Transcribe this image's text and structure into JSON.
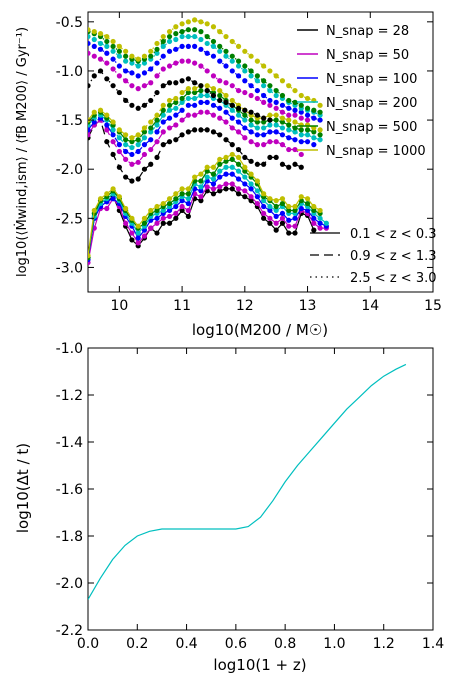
{
  "chart_data": [
    {
      "type": "line",
      "xlabel": "log10(M200 / M☉)",
      "ylabel": "log10(⟨Ṁwind,ism⟩ / ⟨fB M200⟩ / Gyr⁻¹)",
      "xlim": [
        9.5,
        15
      ],
      "ylim": [
        -3.25,
        -0.4
      ],
      "xticks": [
        "10",
        "11",
        "12",
        "13",
        "14",
        "15"
      ],
      "yticks": [
        "-3.0",
        "-2.5",
        "-2.0",
        "-1.5",
        "-1.0",
        "-0.5"
      ],
      "grid": false,
      "legend_snap_position": "top-right",
      "legend_redshift_position": "bottom-right",
      "legend_snap": [
        {
          "label": "N_snap = 28",
          "color": "#000000"
        },
        {
          "label": "N_snap = 50",
          "color": "#bf00bf"
        },
        {
          "label": "N_snap = 100",
          "color": "#0000ff"
        },
        {
          "label": "N_snap = 200",
          "color": "#00bfbf"
        },
        {
          "label": "N_snap = 500",
          "color": "#008000"
        },
        {
          "label": "N_snap = 1000",
          "color": "#bfbf00"
        }
      ],
      "legend_redshift": [
        {
          "label": "0.1 < z < 0.3",
          "dash": "solid"
        },
        {
          "label": "0.9 < z < 1.3",
          "dash": "dashed"
        },
        {
          "label": "2.5 < z < 3.0",
          "dash": "dotted"
        }
      ],
      "x": [
        9.5,
        9.6,
        9.7,
        9.8,
        9.9,
        10.0,
        10.1,
        10.2,
        10.3,
        10.4,
        10.5,
        10.6,
        10.7,
        10.8,
        10.9,
        11.0,
        11.1,
        11.2,
        11.3,
        11.4,
        11.5,
        11.6,
        11.7,
        11.8,
        11.9,
        12.0,
        12.1,
        12.2,
        12.3,
        12.4,
        12.5,
        12.6,
        12.7,
        12.8,
        12.9,
        13.0,
        13.1,
        13.2,
        13.3
      ],
      "series": [
        {
          "name": "N_snap = 28",
          "redshift": "0.1 < z < 0.3",
          "color": "#000000",
          "values": [
            -2.9,
            -2.5,
            -2.32,
            -2.33,
            -2.28,
            -2.42,
            -2.58,
            -2.72,
            -2.78,
            -2.7,
            -2.6,
            -2.65,
            -2.55,
            -2.55,
            -2.5,
            -2.42,
            -2.48,
            -2.3,
            -2.32,
            -2.22,
            -2.25,
            -2.22,
            -2.2,
            -2.2,
            -2.25,
            -2.28,
            -2.32,
            -2.38,
            -2.5,
            -2.55,
            -2.62,
            -2.55,
            -2.65,
            -2.65,
            -2.45,
            -2.47,
            -2.62,
            null,
            null
          ]
        },
        {
          "name": "N_snap = 50",
          "redshift": "0.1 < z < 0.3",
          "color": "#bf00bf",
          "values": [
            -2.95,
            -2.6,
            -2.4,
            -2.4,
            -2.3,
            -2.38,
            -2.55,
            -2.65,
            -2.75,
            -2.68,
            -2.6,
            -2.55,
            -2.5,
            -2.48,
            -2.45,
            -2.38,
            -2.42,
            -2.25,
            -2.28,
            -2.18,
            -2.2,
            -2.18,
            -2.15,
            -2.15,
            -2.2,
            -2.22,
            -2.28,
            -2.35,
            -2.45,
            -2.5,
            -2.55,
            -2.5,
            -2.58,
            -2.58,
            -2.42,
            -2.45,
            -2.55,
            -2.6,
            -2.6
          ]
        },
        {
          "name": "N_snap = 100",
          "redshift": "0.1 < z < 0.3",
          "color": "#0000ff",
          "values": [
            -2.92,
            -2.5,
            -2.38,
            -2.33,
            -2.3,
            -2.35,
            -2.48,
            -2.58,
            -2.7,
            -2.62,
            -2.52,
            -2.5,
            -2.45,
            -2.42,
            -2.38,
            -2.32,
            -2.35,
            -2.2,
            -2.22,
            -2.12,
            -2.15,
            -2.08,
            -2.05,
            -2.05,
            -2.1,
            -2.15,
            -2.2,
            -2.28,
            -2.38,
            -2.42,
            -2.48,
            -2.45,
            -2.52,
            -2.5,
            -2.4,
            -2.42,
            -2.5,
            -2.55,
            -2.58
          ]
        },
        {
          "name": "N_snap = 200",
          "redshift": "0.1 < z < 0.3",
          "color": "#00bfbf",
          "values": [
            -2.9,
            -2.48,
            -2.35,
            -2.3,
            -2.25,
            -2.32,
            -2.45,
            -2.55,
            -2.65,
            -2.58,
            -2.48,
            -2.45,
            -2.42,
            -2.38,
            -2.33,
            -2.28,
            -2.3,
            -2.15,
            -2.18,
            -2.08,
            -2.1,
            -2.02,
            -1.98,
            -1.98,
            -2.02,
            -2.08,
            -2.15,
            -2.22,
            -2.32,
            -2.38,
            -2.42,
            -2.38,
            -2.45,
            -2.45,
            -2.35,
            -2.38,
            -2.45,
            -2.5,
            -2.55
          ]
        },
        {
          "name": "N_snap = 500",
          "redshift": "0.1 < z < 0.3",
          "color": "#008000",
          "values": [
            -2.9,
            -2.45,
            -2.32,
            -2.28,
            -2.22,
            -2.3,
            -2.42,
            -2.52,
            -2.6,
            -2.55,
            -2.45,
            -2.42,
            -2.38,
            -2.35,
            -2.3,
            -2.25,
            -2.25,
            -2.12,
            -2.12,
            -2.02,
            -2.05,
            -1.95,
            -1.92,
            -1.9,
            -1.95,
            -2.02,
            -2.08,
            -2.15,
            -2.28,
            -2.32,
            -2.38,
            -2.35,
            -2.42,
            -2.42,
            -2.32,
            -2.35,
            -2.42,
            -2.45,
            null
          ]
        },
        {
          "name": "N_snap = 1000",
          "redshift": "0.1 < z < 0.3",
          "color": "#bfbf00",
          "values": [
            -2.88,
            -2.42,
            -2.3,
            -2.25,
            -2.2,
            -2.28,
            -2.4,
            -2.5,
            -2.58,
            -2.5,
            -2.42,
            -2.38,
            -2.35,
            -2.3,
            -2.25,
            -2.2,
            -2.2,
            -2.08,
            -2.05,
            -1.98,
            -1.98,
            -1.9,
            -1.88,
            -1.85,
            -1.88,
            -1.98,
            -2.05,
            -2.12,
            -2.25,
            -2.3,
            -2.32,
            -2.3,
            -2.38,
            -2.38,
            -2.28,
            -2.3,
            -2.38,
            -2.42,
            null
          ]
        },
        {
          "name": "N_snap = 28",
          "redshift": "0.9 < z < 1.3",
          "color": "#000000",
          "values": [
            -1.68,
            -1.55,
            -1.5,
            -1.72,
            -1.85,
            -1.98,
            -2.08,
            -2.12,
            -2.1,
            -2.0,
            -1.95,
            -1.88,
            -1.75,
            -1.72,
            -1.7,
            -1.65,
            -1.62,
            -1.6,
            -1.6,
            -1.6,
            -1.62,
            -1.65,
            -1.7,
            -1.75,
            -1.8,
            -1.88,
            -1.92,
            -1.95,
            -1.95,
            -1.88,
            -1.88,
            -1.95,
            -1.98,
            -1.95,
            -1.98,
            null,
            null,
            null,
            null
          ]
        },
        {
          "name": "N_snap = 50",
          "redshift": "0.9 < z < 1.3",
          "color": "#bf00bf",
          "values": [
            -1.65,
            -1.55,
            -1.5,
            -1.6,
            -1.72,
            -1.82,
            -1.9,
            -1.95,
            -1.93,
            -1.85,
            -1.8,
            -1.72,
            -1.62,
            -1.58,
            -1.55,
            -1.5,
            -1.45,
            -1.45,
            -1.42,
            -1.42,
            -1.45,
            -1.48,
            -1.52,
            -1.58,
            -1.62,
            -1.68,
            -1.72,
            -1.75,
            -1.75,
            -1.72,
            -1.72,
            -1.75,
            -1.8,
            -1.8,
            -1.85,
            null,
            null,
            null,
            null
          ]
        },
        {
          "name": "N_snap = 100",
          "redshift": "0.9 < z < 1.3",
          "color": "#0000ff",
          "values": [
            -1.6,
            -1.52,
            -1.48,
            -1.55,
            -1.65,
            -1.75,
            -1.82,
            -1.85,
            -1.82,
            -1.75,
            -1.7,
            -1.62,
            -1.52,
            -1.48,
            -1.45,
            -1.4,
            -1.35,
            -1.35,
            -1.32,
            -1.32,
            -1.35,
            -1.38,
            -1.42,
            -1.48,
            -1.52,
            -1.58,
            -1.62,
            -1.65,
            -1.65,
            -1.62,
            -1.62,
            -1.65,
            -1.68,
            -1.7,
            -1.72,
            -1.72,
            -1.75,
            null,
            null
          ]
        },
        {
          "name": "N_snap = 200",
          "redshift": "0.9 < z < 1.3",
          "color": "#00bfbf",
          "values": [
            -1.55,
            -1.48,
            -1.45,
            -1.5,
            -1.6,
            -1.68,
            -1.75,
            -1.78,
            -1.75,
            -1.68,
            -1.62,
            -1.55,
            -1.45,
            -1.4,
            -1.38,
            -1.32,
            -1.28,
            -1.28,
            -1.25,
            -1.25,
            -1.28,
            -1.3,
            -1.35,
            -1.4,
            -1.45,
            -1.5,
            -1.55,
            -1.58,
            -1.58,
            -1.55,
            -1.55,
            -1.58,
            -1.6,
            -1.62,
            -1.65,
            -1.65,
            -1.68,
            -1.7,
            null
          ]
        },
        {
          "name": "N_snap = 500",
          "redshift": "0.9 < z < 1.3",
          "color": "#008000",
          "values": [
            -1.52,
            -1.45,
            -1.42,
            -1.48,
            -1.55,
            -1.62,
            -1.7,
            -1.72,
            -1.7,
            -1.62,
            -1.58,
            -1.5,
            -1.4,
            -1.35,
            -1.32,
            -1.28,
            -1.22,
            -1.22,
            -1.2,
            -1.2,
            -1.22,
            -1.25,
            -1.3,
            -1.35,
            -1.4,
            -1.45,
            -1.5,
            -1.52,
            -1.52,
            -1.5,
            -1.5,
            -1.52,
            -1.55,
            -1.58,
            -1.6,
            -1.6,
            -1.62,
            -1.65,
            null
          ]
        },
        {
          "name": "N_snap = 1000",
          "redshift": "0.9 < z < 1.3",
          "color": "#bfbf00",
          "values": [
            -1.5,
            -1.42,
            -1.4,
            -1.45,
            -1.52,
            -1.6,
            -1.65,
            -1.68,
            -1.65,
            -1.58,
            -1.52,
            -1.45,
            -1.35,
            -1.3,
            -1.28,
            -1.22,
            -1.18,
            -1.18,
            -1.15,
            -1.15,
            -1.18,
            -1.2,
            -1.25,
            -1.3,
            -1.35,
            -1.4,
            -1.45,
            -1.48,
            -1.48,
            -1.45,
            -1.45,
            -1.48,
            -1.5,
            -1.52,
            -1.55,
            -1.55,
            -1.58,
            -1.6,
            null
          ]
        },
        {
          "name": "N_snap = 28",
          "redshift": "2.5 < z < 3.0",
          "color": "#000000",
          "values": [
            -1.15,
            -1.05,
            -1.0,
            -1.08,
            -1.15,
            -1.22,
            -1.3,
            -1.35,
            -1.38,
            -1.35,
            -1.3,
            -1.22,
            -1.15,
            -1.12,
            -1.12,
            -1.1,
            -1.08,
            -1.12,
            -1.15,
            -1.2,
            -1.25,
            -1.3,
            -1.32,
            -1.35,
            -1.38,
            -1.4,
            -1.42,
            -1.45,
            -1.48,
            -1.5,
            null,
            null,
            null,
            null,
            null,
            null,
            null,
            null,
            null
          ]
        },
        {
          "name": "N_snap = 50",
          "redshift": "2.5 < z < 3.0",
          "color": "#bf00bf",
          "values": [
            -0.82,
            -0.85,
            -0.88,
            -0.92,
            -0.98,
            -1.05,
            -1.1,
            -1.15,
            -1.18,
            -1.15,
            -1.12,
            -1.05,
            -0.98,
            -0.95,
            -0.92,
            -0.9,
            -0.9,
            -0.92,
            -0.95,
            -1.0,
            -1.05,
            -1.1,
            -1.12,
            -1.15,
            -1.2,
            -1.22,
            -1.25,
            -1.28,
            -1.32,
            -1.35,
            -1.38,
            -1.42,
            -1.45,
            -1.45,
            -1.48,
            -1.5,
            null,
            null,
            null
          ]
        },
        {
          "name": "N_snap = 100",
          "redshift": "2.5 < z < 3.0",
          "color": "#0000ff",
          "values": [
            -0.72,
            -0.75,
            -0.78,
            -0.82,
            -0.88,
            -0.95,
            -1.0,
            -1.02,
            -1.05,
            -1.02,
            -0.98,
            -0.92,
            -0.85,
            -0.8,
            -0.78,
            -0.75,
            -0.75,
            -0.75,
            -0.78,
            -0.82,
            -0.85,
            -0.9,
            -0.95,
            -1.0,
            -1.05,
            -1.1,
            -1.15,
            -1.2,
            -1.25,
            -1.3,
            -1.32,
            -1.35,
            -1.38,
            -1.4,
            -1.42,
            -1.45,
            -1.48,
            -1.5,
            null
          ]
        },
        {
          "name": "N_snap = 200",
          "redshift": "2.5 < z < 3.0",
          "color": "#00bfbf",
          "values": [
            -0.65,
            -0.68,
            -0.72,
            -0.75,
            -0.8,
            -0.85,
            -0.9,
            -0.92,
            -0.95,
            -0.92,
            -0.88,
            -0.82,
            -0.75,
            -0.7,
            -0.68,
            -0.65,
            -0.65,
            -0.65,
            -0.68,
            -0.72,
            -0.75,
            -0.8,
            -0.85,
            -0.9,
            -0.95,
            -1.0,
            -1.05,
            -1.1,
            -1.15,
            -1.2,
            -1.25,
            -1.28,
            -1.32,
            -1.35,
            -1.38,
            -1.4,
            -1.42,
            -1.45,
            null
          ]
        },
        {
          "name": "N_snap = 500",
          "redshift": "2.5 < z < 3.0",
          "color": "#008000",
          "values": [
            -0.6,
            -0.62,
            -0.65,
            -0.7,
            -0.75,
            -0.8,
            -0.85,
            -0.88,
            -0.9,
            -0.88,
            -0.85,
            -0.78,
            -0.7,
            -0.65,
            -0.62,
            -0.6,
            -0.58,
            -0.58,
            -0.6,
            -0.65,
            -0.7,
            -0.75,
            -0.8,
            -0.85,
            -0.9,
            -0.95,
            -1.0,
            -1.05,
            -1.1,
            -1.15,
            -1.2,
            -1.25,
            -1.3,
            -1.32,
            -1.35,
            -1.38,
            -1.4,
            -1.42,
            null
          ]
        },
        {
          "name": "N_snap = 1000",
          "redshift": "2.5 < z < 3.0",
          "color": "#bfbf00",
          "values": [
            -0.58,
            -0.6,
            -0.62,
            -0.65,
            -0.7,
            -0.75,
            -0.8,
            -0.85,
            -0.88,
            -0.85,
            -0.8,
            -0.72,
            -0.65,
            -0.6,
            -0.55,
            -0.52,
            -0.5,
            -0.48,
            -0.5,
            -0.52,
            -0.55,
            -0.6,
            -0.65,
            -0.7,
            -0.75,
            -0.8,
            -0.85,
            -0.9,
            -0.95,
            -1.0,
            -1.05,
            -1.1,
            -1.15,
            -1.2,
            -1.25,
            -1.28,
            -1.3,
            -1.35,
            null
          ]
        }
      ]
    },
    {
      "type": "line",
      "xlabel": "log10(1 + z)",
      "ylabel": "log10(Δt / t)",
      "xlim": [
        0,
        1.4
      ],
      "ylim": [
        -2.2,
        -1.0
      ],
      "xticks": [
        "0.0",
        "0.2",
        "0.4",
        "0.6",
        "0.8",
        "1.0",
        "1.2",
        "1.4"
      ],
      "yticks": [
        "-2.2",
        "-2.0",
        "-1.8",
        "-1.6",
        "-1.4",
        "-1.2",
        "-1.0"
      ],
      "grid": false,
      "series": [
        {
          "color": "#00bfbf",
          "x": [
            0.0,
            0.05,
            0.1,
            0.15,
            0.2,
            0.25,
            0.3,
            0.35,
            0.4,
            0.45,
            0.5,
            0.55,
            0.6,
            0.65,
            0.7,
            0.75,
            0.8,
            0.85,
            0.9,
            0.95,
            1.0,
            1.05,
            1.1,
            1.15,
            1.2,
            1.25,
            1.29
          ],
          "y": [
            -2.07,
            -1.98,
            -1.9,
            -1.84,
            -1.8,
            -1.78,
            -1.77,
            -1.77,
            -1.77,
            -1.77,
            -1.77,
            -1.77,
            -1.77,
            -1.76,
            -1.72,
            -1.65,
            -1.57,
            -1.5,
            -1.44,
            -1.38,
            -1.32,
            -1.26,
            -1.21,
            -1.16,
            -1.12,
            -1.09,
            -1.07
          ]
        }
      ]
    }
  ]
}
